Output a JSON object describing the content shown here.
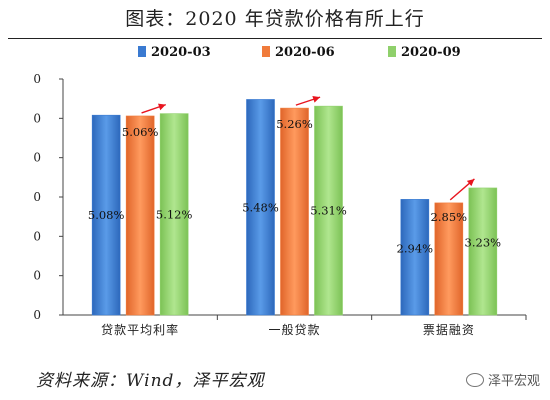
{
  "title": "图表：2020 年贷款价格有所上行",
  "source": "资料来源：Wind，泽平宏观",
  "watermark": "泽平宏观",
  "colors": {
    "s1": "#3a7ad1",
    "s2": "#f07b3b",
    "s3": "#8fd06b",
    "arrow": "#e8141e"
  },
  "chart_data": {
    "type": "bar",
    "categories": [
      "贷款平均利率",
      "一般贷款",
      "票据融资"
    ],
    "series": [
      {
        "name": "2020-03",
        "values": [
          5.08,
          5.48,
          2.94
        ]
      },
      {
        "name": "2020-06",
        "values": [
          5.06,
          5.26,
          2.85
        ]
      },
      {
        "name": "2020-09",
        "values": [
          5.12,
          5.31,
          3.23
        ]
      }
    ],
    "data_labels": [
      [
        "5.08%",
        "5.06%",
        "5.12%"
      ],
      [
        "5.48%",
        "5.26%",
        "5.31%"
      ],
      [
        "2.94%",
        "2.85%",
        "3.23%"
      ]
    ],
    "ytick_labels": [
      "0",
      "0",
      "0",
      "0",
      "0",
      "0",
      "0"
    ],
    "ylim": [
      0,
      6
    ],
    "legend_position": "top",
    "grid": false
  }
}
